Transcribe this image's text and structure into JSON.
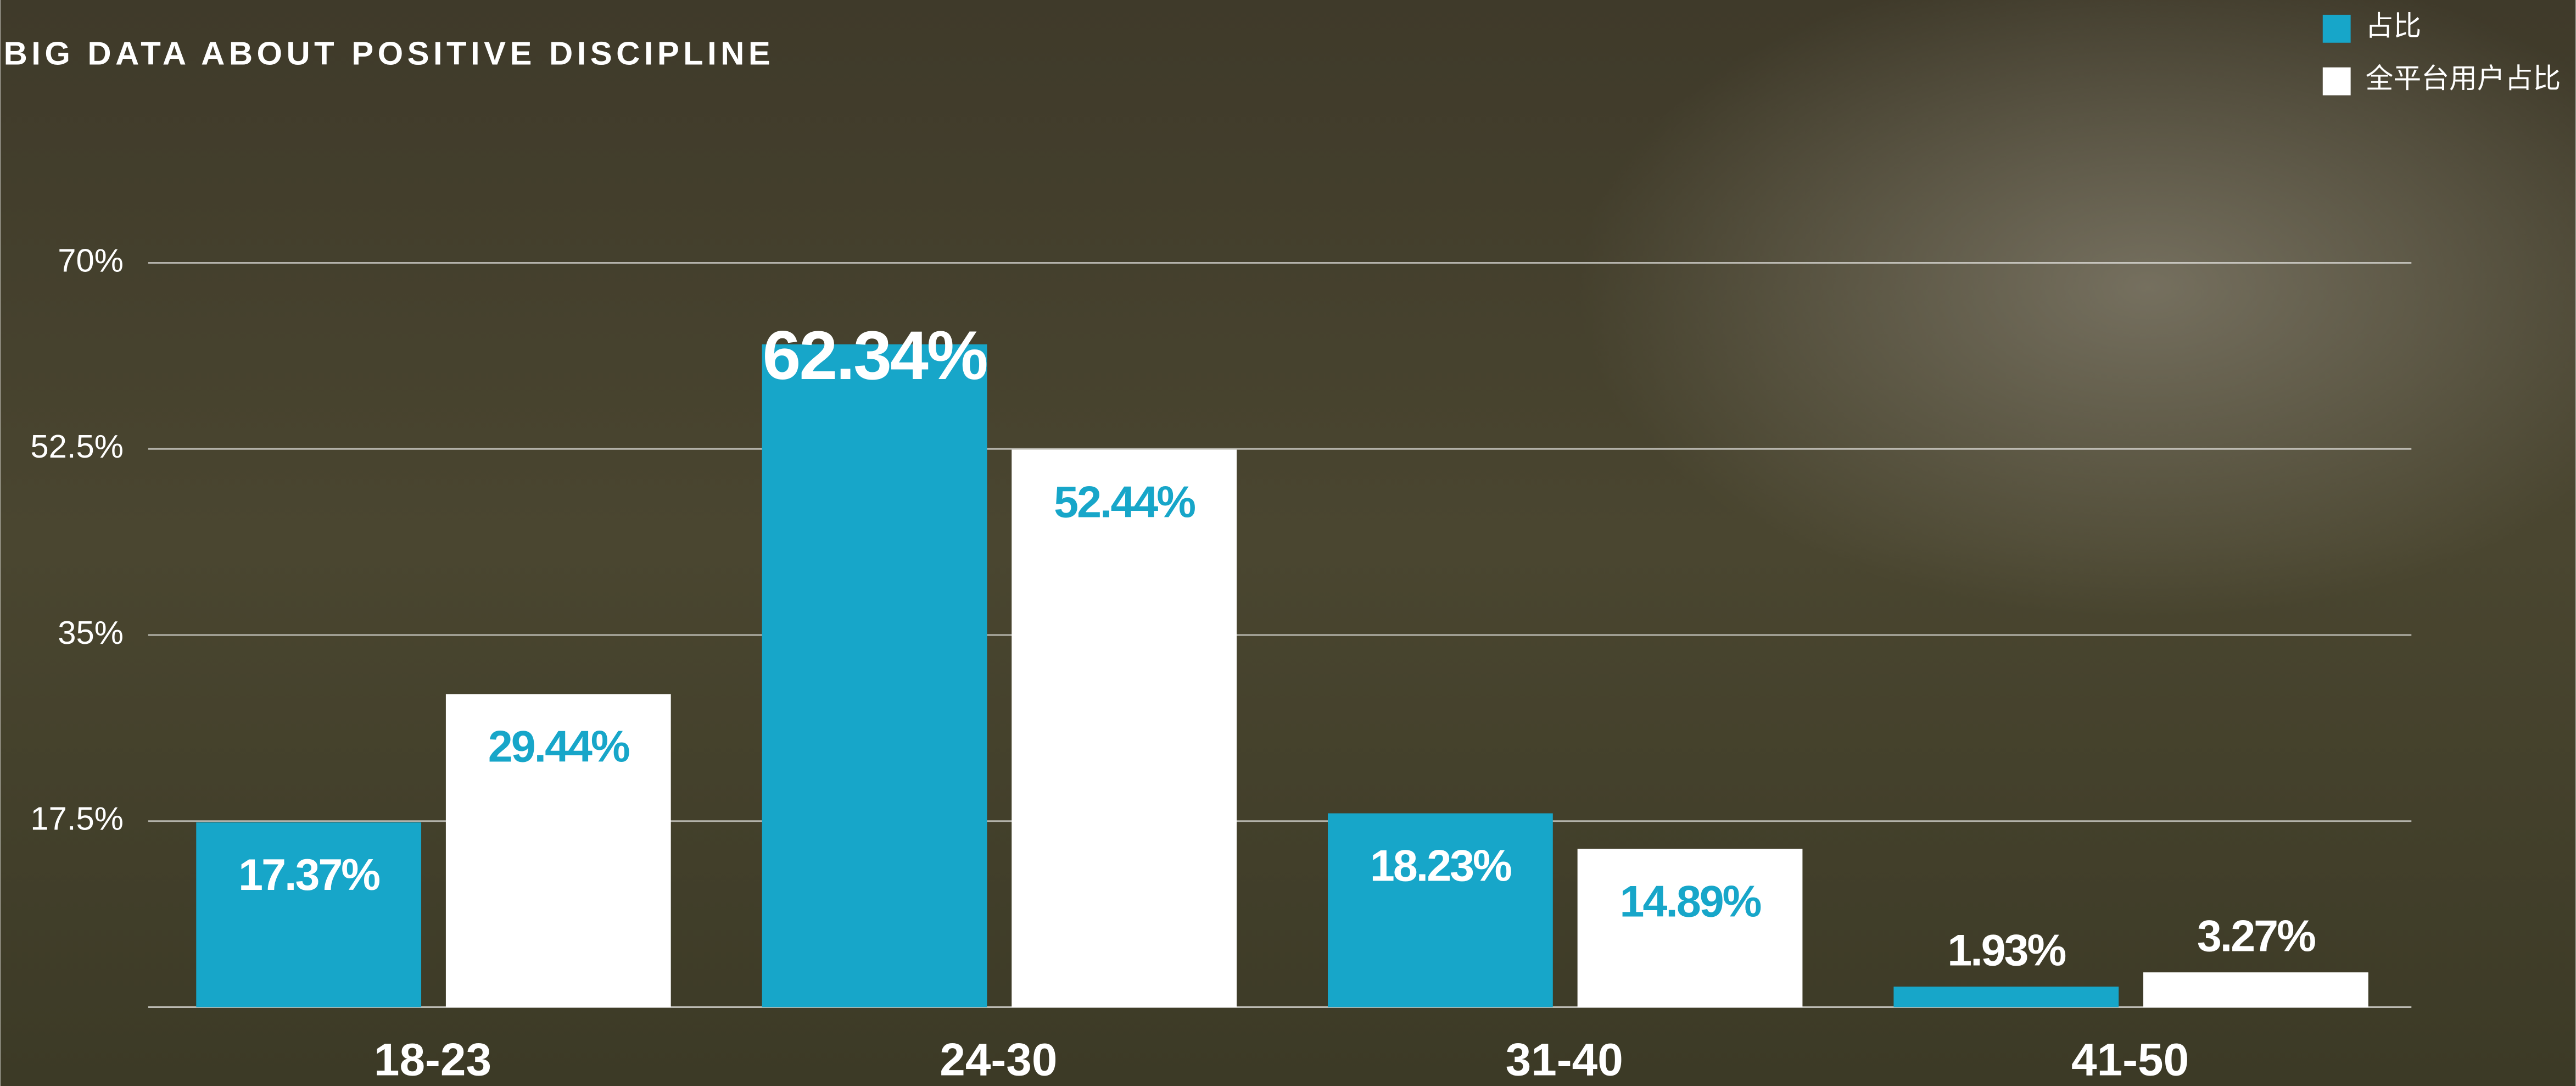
{
  "chart_data": {
    "type": "bar",
    "title": "BIG DATA ABOUT POSITIVE DISCIPLINE",
    "categories": [
      "18-23",
      "24-30",
      "31-40",
      "41-50"
    ],
    "series": [
      {
        "name": "占比",
        "color": "#17a6c9",
        "values": [
          17.37,
          62.34,
          18.23,
          1.93
        ],
        "value_labels": [
          "17.37%",
          "62.34%",
          "18.23%",
          "1.93%"
        ]
      },
      {
        "name": "全平台用户占比",
        "color": "#ffffff",
        "values": [
          29.44,
          52.44,
          14.89,
          3.27
        ],
        "value_labels": [
          "29.44%",
          "52.44%",
          "14.89%",
          "3.27%"
        ]
      }
    ],
    "ylim": [
      0,
      70
    ],
    "yticks": [
      {
        "value": 17.5,
        "label": "17.5%"
      },
      {
        "value": 35,
        "label": "35%"
      },
      {
        "value": 52.5,
        "label": "52.5%"
      },
      {
        "value": 70,
        "label": "70%"
      }
    ],
    "grid": true,
    "legend": "top-right"
  }
}
